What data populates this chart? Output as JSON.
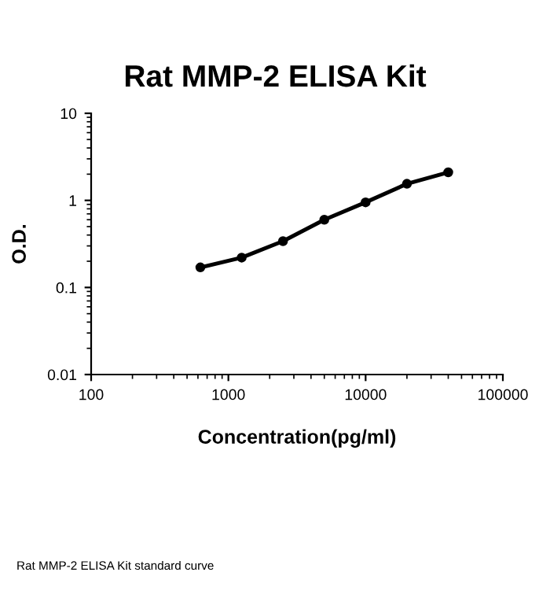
{
  "chart_data": {
    "type": "line",
    "title": "Rat MMP-2 ELISA Kit",
    "xlabel": "Concentration(pg/ml)",
    "ylabel": "O.D.",
    "x": [
      625,
      1250,
      2500,
      5000,
      10000,
      20000,
      40000
    ],
    "series": [
      {
        "color": "#000000",
        "values": [
          0.17,
          0.22,
          0.34,
          0.6,
          0.95,
          1.55,
          2.1
        ]
      }
    ],
    "log": "xy",
    "xlim": [
      100,
      100000
    ],
    "ylim": [
      0.01,
      10
    ],
    "xticks": [
      100,
      1000,
      10000,
      100000
    ],
    "yticks": [
      0.01,
      0.1,
      1,
      10
    ],
    "marker": "circle",
    "line_style": "solid",
    "grid": false,
    "legend": false,
    "annotations": [
      "Rat MMP-2 ELISA Kit standard curve"
    ]
  }
}
